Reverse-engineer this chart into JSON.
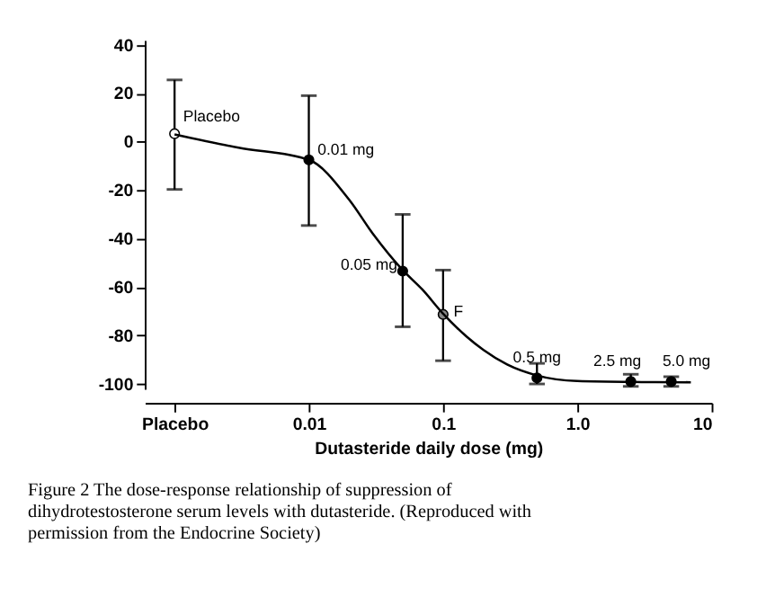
{
  "chart_data": {
    "type": "scatter",
    "xlabel": "Dutasteride daily dose (mg)",
    "log": "x",
    "xlim": [
      0.0006,
      10
    ],
    "xticks": [
      {
        "value": 0.001,
        "label": "Placebo"
      },
      0.01,
      0.1,
      {
        "value": 1,
        "label": "1.0"
      },
      10
    ],
    "ylim": [
      -102,
      42
    ],
    "yticks": [
      -100,
      -80,
      -60,
      -40,
      -20,
      0,
      20,
      40
    ],
    "grid": false,
    "series": [
      {
        "type": "scatter",
        "marker": "circle",
        "x": [
          0.001,
          0.01,
          0.05,
          0.1,
          0.5,
          2.5,
          5.0
        ],
        "values": [
          3.3,
          -7.5,
          -53.4,
          -71.3,
          -97.5,
          -99,
          -99
        ],
        "errors": [
          [
            -19.7,
            25.5
          ],
          [
            -34.6,
            19
          ],
          [
            -76.4,
            -30
          ],
          [
            -90.4,
            -53
          ],
          [
            -100,
            -91.5
          ],
          [
            -101,
            -96
          ],
          [
            -101,
            -97
          ]
        ],
        "colors": [
          "#ffffff",
          "#000000",
          "#000000",
          "#888888",
          "#000000",
          "#000000",
          "#000000"
        ]
      },
      {
        "type": "line",
        "color": "#000000",
        "x": [
          0.001,
          0.003,
          0.01,
          0.02,
          0.03,
          0.05,
          0.07,
          0.1,
          0.15,
          0.2,
          0.3,
          0.5,
          1,
          3,
          7
        ],
        "values": [
          3,
          -2.5,
          -7.5,
          -24,
          -38,
          -53,
          -61,
          -71,
          -80.5,
          -86,
          -92,
          -96.5,
          -98.8,
          -99.2,
          -99.3
        ]
      }
    ],
    "annotations": [
      {
        "text": "Placebo",
        "x": 0.001,
        "y": 3.3
      },
      {
        "text": "0.01 mg",
        "x": 0.01,
        "y": -7.5
      },
      {
        "text": "0.05 mg",
        "x": 0.05,
        "y": -53.4
      },
      {
        "text": "F",
        "x": 0.1,
        "y": -71.3
      },
      {
        "text": "0.5 mg",
        "x": 0.5,
        "y": -97.5
      },
      {
        "text": "2.5 mg",
        "x": 2.5,
        "y": -99
      },
      {
        "text": "5.0 mg",
        "x": 5.0,
        "y": -99
      },
      "Figure 2  The dose-response relationship of suppression of dihydrotestosterone serum levels with dutasteride. (Reproduced with permission from the Endocrine Society)"
    ]
  }
}
